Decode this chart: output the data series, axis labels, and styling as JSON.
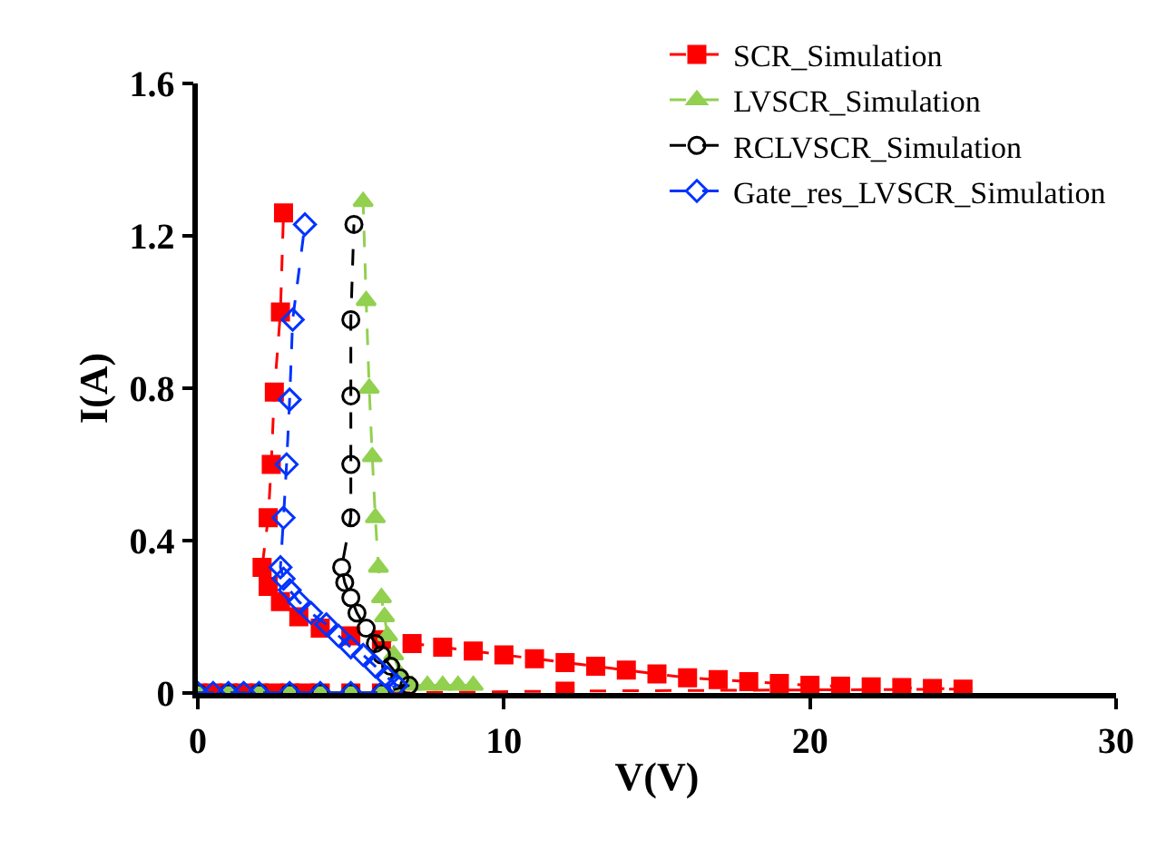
{
  "chart_data": {
    "type": "line",
    "xlabel": "V(V)",
    "ylabel": "I(A)",
    "xlim": [
      0,
      30
    ],
    "xticks": [
      0,
      10,
      20,
      30
    ],
    "ylim": [
      0,
      1.6
    ],
    "yticks": [
      0,
      0.4,
      0.8,
      1.2,
      1.6
    ],
    "legend": "top right",
    "line_style": "dashed",
    "series": [
      {
        "name": "SCR_Simulation",
        "color": "#ff0000",
        "marker": "square",
        "x": [
          0,
          0.5,
          1,
          1.5,
          2,
          2.5,
          3,
          3.5,
          4,
          5,
          6,
          12,
          25,
          24,
          23,
          22,
          21,
          20,
          19,
          18,
          17,
          16,
          15,
          14,
          13,
          12,
          11,
          10,
          9,
          8,
          7,
          6,
          5,
          4,
          3.3,
          2.7,
          2.3,
          2.1,
          2.3,
          2.4,
          2.5,
          2.7,
          2.8
        ],
        "values": [
          0,
          0,
          0,
          0,
          0,
          0,
          0,
          0,
          0,
          0,
          0,
          0.005,
          0.01,
          0.012,
          0.014,
          0.016,
          0.018,
          0.02,
          0.025,
          0.03,
          0.035,
          0.04,
          0.05,
          0.06,
          0.07,
          0.08,
          0.09,
          0.1,
          0.11,
          0.12,
          0.13,
          0.14,
          0.15,
          0.17,
          0.2,
          0.24,
          0.28,
          0.33,
          0.46,
          0.6,
          0.79,
          1.0,
          1.26
        ]
      },
      {
        "name": "LVSCR_Simulation",
        "color": "#92d050",
        "marker": "triangle",
        "x": [
          0,
          1,
          2,
          3,
          4,
          5,
          6,
          7.5,
          8,
          8.5,
          9,
          7,
          6.6,
          6.4,
          6.2,
          6.1,
          6.0,
          5.9,
          5.8,
          5.7,
          5.6,
          5.5,
          5.4
        ],
        "values": [
          0,
          0,
          0,
          0,
          0,
          0,
          0,
          0.02,
          0.02,
          0.02,
          0.02,
          0.02,
          0.05,
          0.1,
          0.15,
          0.2,
          0.25,
          0.33,
          0.46,
          0.62,
          0.8,
          1.03,
          1.29
        ]
      },
      {
        "name": "RCLVSCR_Simulation",
        "color": "#000000",
        "marker": "circle-open",
        "x": [
          0,
          1,
          2,
          3,
          4,
          5,
          6,
          6.9,
          6.6,
          6.3,
          6.0,
          5.8,
          5.5,
          5.2,
          5.0,
          4.8,
          4.7,
          5.0,
          5.0,
          5.0,
          5.0,
          5.1
        ],
        "values": [
          0,
          0,
          0,
          0,
          0,
          0,
          0,
          0.02,
          0.04,
          0.07,
          0.1,
          0.13,
          0.17,
          0.21,
          0.25,
          0.29,
          0.33,
          0.46,
          0.6,
          0.78,
          0.98,
          1.23
        ]
      },
      {
        "name": "Gate_res_LVSCR_Simulation",
        "color": "#0033ff",
        "marker": "diamond-open",
        "x": [
          0,
          0.5,
          1,
          1.5,
          2,
          3,
          4,
          5,
          6,
          6.5,
          6.2,
          5.8,
          5.4,
          5.0,
          4.6,
          4.2,
          3.7,
          3.3,
          3.0,
          2.8,
          2.7,
          2.8,
          2.9,
          3.0,
          3.1,
          3.5
        ],
        "values": [
          0,
          0,
          0,
          0,
          0,
          0,
          0,
          0,
          0,
          0.02,
          0.04,
          0.07,
          0.1,
          0.12,
          0.15,
          0.18,
          0.21,
          0.24,
          0.27,
          0.3,
          0.33,
          0.46,
          0.6,
          0.77,
          0.98,
          1.23
        ]
      }
    ]
  }
}
